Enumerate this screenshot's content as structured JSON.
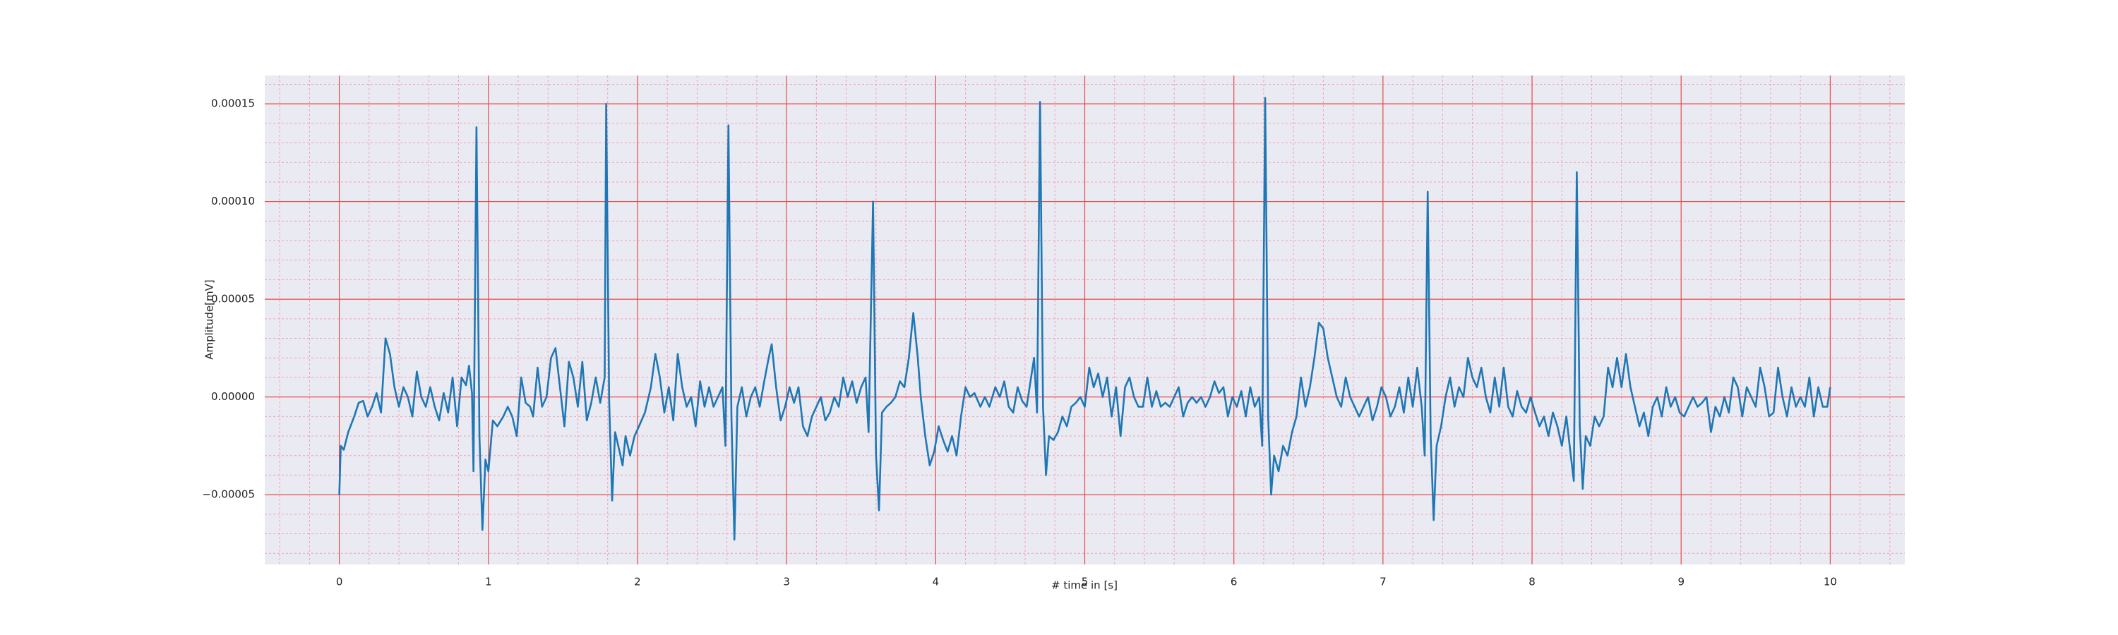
{
  "chart_data": {
    "type": "line",
    "xlabel": "# time in [s]",
    "ylabel": "Amplitude[mV]",
    "color": "#1f77b4",
    "grid": true,
    "grid_color": "#e84a4a",
    "minor_grid": true,
    "minor_grid_color": "#f3a0b4",
    "background": "#eaeaf2",
    "xlim": [
      -0.5,
      10.5
    ],
    "ylim": [
      -8.57e-05,
      0.0001645
    ],
    "xticks": [
      0,
      1,
      2,
      3,
      4,
      5,
      6,
      7,
      8,
      9,
      10
    ],
    "yticks": [
      {
        "value": -5e-05,
        "label": "−0.00005"
      },
      {
        "value": 0,
        "label": "0.00000"
      },
      {
        "value": 5e-05,
        "label": "0.00005"
      },
      {
        "value": 0.0001,
        "label": "0.00010"
      },
      {
        "value": 0.00015,
        "label": "0.00015"
      }
    ],
    "x": [
      0,
      0.01,
      0.03,
      0.06,
      0.1,
      0.13,
      0.16,
      0.19,
      0.22,
      0.25,
      0.28,
      0.31,
      0.34,
      0.37,
      0.4,
      0.43,
      0.46,
      0.49,
      0.52,
      0.55,
      0.58,
      0.61,
      0.64,
      0.67,
      0.7,
      0.73,
      0.76,
      0.79,
      0.82,
      0.85,
      0.87,
      0.89,
      0.9,
      0.92,
      0.94,
      0.96,
      0.98,
      1.0,
      1.03,
      1.06,
      1.1,
      1.13,
      1.16,
      1.19,
      1.22,
      1.25,
      1.28,
      1.3,
      1.33,
      1.36,
      1.39,
      1.42,
      1.45,
      1.48,
      1.51,
      1.54,
      1.57,
      1.6,
      1.63,
      1.66,
      1.69,
      1.72,
      1.75,
      1.78,
      1.79,
      1.81,
      1.83,
      1.85,
      1.88,
      1.9,
      1.92,
      1.95,
      1.98,
      2.01,
      2.05,
      2.09,
      2.12,
      2.15,
      2.18,
      2.21,
      2.24,
      2.27,
      2.3,
      2.33,
      2.36,
      2.39,
      2.42,
      2.45,
      2.48,
      2.51,
      2.54,
      2.57,
      2.59,
      2.61,
      2.63,
      2.65,
      2.67,
      2.7,
      2.73,
      2.76,
      2.79,
      2.82,
      2.85,
      2.88,
      2.9,
      2.93,
      2.96,
      2.99,
      3.02,
      3.05,
      3.08,
      3.11,
      3.14,
      3.17,
      3.2,
      3.23,
      3.26,
      3.29,
      3.32,
      3.35,
      3.38,
      3.41,
      3.44,
      3.47,
      3.5,
      3.53,
      3.55,
      3.58,
      3.6,
      3.62,
      3.64,
      3.67,
      3.7,
      3.73,
      3.76,
      3.79,
      3.82,
      3.85,
      3.88,
      3.9,
      3.93,
      3.96,
      3.99,
      4.02,
      4.05,
      4.08,
      4.11,
      4.14,
      4.17,
      4.2,
      4.23,
      4.26,
      4.3,
      4.33,
      4.36,
      4.4,
      4.43,
      4.46,
      4.49,
      4.52,
      4.55,
      4.58,
      4.61,
      4.64,
      4.66,
      4.68,
      4.7,
      4.72,
      4.74,
      4.76,
      4.79,
      4.82,
      4.85,
      4.88,
      4.91,
      4.94,
      4.97,
      5.0,
      5.03,
      5.06,
      5.09,
      5.12,
      5.15,
      5.18,
      5.21,
      5.24,
      5.27,
      5.3,
      5.33,
      5.36,
      5.39,
      5.42,
      5.45,
      5.48,
      5.51,
      5.54,
      5.57,
      5.6,
      5.63,
      5.66,
      5.69,
      5.72,
      5.75,
      5.78,
      5.81,
      5.84,
      5.87,
      5.9,
      5.93,
      5.96,
      5.99,
      6.02,
      6.05,
      6.08,
      6.11,
      6.14,
      6.17,
      6.19,
      6.21,
      6.23,
      6.25,
      6.27,
      6.3,
      6.33,
      6.36,
      6.39,
      6.42,
      6.45,
      6.48,
      6.51,
      6.54,
      6.57,
      6.6,
      6.63,
      6.66,
      6.69,
      6.72,
      6.75,
      6.78,
      6.81,
      6.84,
      6.87,
      6.9,
      6.93,
      6.96,
      6.99,
      7.02,
      7.05,
      7.08,
      7.11,
      7.14,
      7.17,
      7.2,
      7.23,
      7.26,
      7.28,
      7.3,
      7.32,
      7.34,
      7.36,
      7.39,
      7.42,
      7.45,
      7.48,
      7.51,
      7.54,
      7.57,
      7.6,
      7.63,
      7.66,
      7.69,
      7.72,
      7.75,
      7.78,
      7.81,
      7.84,
      7.87,
      7.9,
      7.93,
      7.96,
      7.99,
      8.02,
      8.05,
      8.08,
      8.11,
      8.14,
      8.17,
      8.2,
      8.23,
      8.26,
      8.28,
      8.3,
      8.32,
      8.34,
      8.36,
      8.39,
      8.42,
      8.45,
      8.48,
      8.51,
      8.54,
      8.57,
      8.6,
      8.63,
      8.66,
      8.69,
      8.72,
      8.75,
      8.78,
      8.81,
      8.84,
      8.87,
      8.9,
      8.93,
      8.96,
      8.99,
      9.02,
      9.05,
      9.08,
      9.11,
      9.14,
      9.17,
      9.2,
      9.23,
      9.26,
      9.29,
      9.32,
      9.35,
      9.38,
      9.41,
      9.44,
      9.47,
      9.5,
      9.53,
      9.56,
      9.59,
      9.62,
      9.65,
      9.68,
      9.71,
      9.74,
      9.77,
      9.8,
      9.83,
      9.86,
      9.89,
      9.92,
      9.95,
      9.98,
      10
    ],
    "values": [
      -5e-05,
      -2.5e-05,
      -2.7e-05,
      -1.8e-05,
      -1e-05,
      -3e-06,
      -2e-06,
      -1e-05,
      -5e-06,
      2e-06,
      -8e-06,
      3e-05,
      2.2e-05,
      5e-06,
      -5e-06,
      5e-06,
      0,
      -1e-05,
      1.3e-05,
      0,
      -5e-06,
      5e-06,
      -5e-06,
      -1.2e-05,
      2e-06,
      -8e-06,
      1e-05,
      -1.5e-05,
      1e-05,
      6e-06,
      1.6e-05,
      2e-06,
      -3.8e-05,
      0.000138,
      -2e-05,
      -6.8e-05,
      -3.2e-05,
      -3.8e-05,
      -1.2e-05,
      -1.5e-05,
      -1e-05,
      -5e-06,
      -1e-05,
      -2e-05,
      1e-05,
      -3e-06,
      -5e-06,
      -1e-05,
      1.5e-05,
      -5e-06,
      0,
      2e-05,
      2.5e-05,
      5e-06,
      -1.5e-05,
      1.8e-05,
      1e-05,
      -5e-06,
      1.8e-05,
      -1.2e-05,
      -3e-06,
      1e-05,
      -3e-06,
      1e-05,
      0.00015,
      -2e-06,
      -5.3e-05,
      -1.8e-05,
      -2.8e-05,
      -3.5e-05,
      -2e-05,
      -3e-05,
      -2e-05,
      -1.5e-05,
      -8e-06,
      5e-06,
      2.2e-05,
      1e-05,
      -8e-06,
      5e-06,
      -1.2e-05,
      2.2e-05,
      5e-06,
      -5e-06,
      0,
      -1.5e-05,
      8e-06,
      -5e-06,
      5e-06,
      -5e-06,
      0,
      5e-06,
      -2.5e-05,
      0.000139,
      -1e-05,
      -7.3e-05,
      -5e-06,
      5e-06,
      -1e-05,
      0,
      5e-06,
      -5e-06,
      8e-06,
      2e-05,
      2.7e-05,
      5e-06,
      -1.2e-05,
      -5e-06,
      5e-06,
      -3e-06,
      5e-06,
      -1.5e-05,
      -2e-05,
      -1e-05,
      -5e-06,
      0,
      -1.2e-05,
      -8e-06,
      0,
      -5e-06,
      1e-05,
      0,
      8e-06,
      -3e-06,
      5e-06,
      1e-05,
      -1.8e-05,
      0.0001,
      -3e-05,
      -5.8e-05,
      -8e-06,
      -5e-06,
      -3e-06,
      0,
      8e-06,
      5e-06,
      2e-05,
      4.3e-05,
      2e-05,
      0,
      -2e-05,
      -3.5e-05,
      -2.8e-05,
      -1.5e-05,
      -2.2e-05,
      -2.8e-05,
      -2e-05,
      -3e-05,
      -1e-05,
      5e-06,
      0,
      2e-06,
      -5e-06,
      0,
      -5e-06,
      5e-06,
      0,
      8e-06,
      -5e-06,
      -8e-06,
      5e-06,
      -2e-06,
      -5e-06,
      1e-05,
      2e-05,
      -8e-06,
      0.000151,
      -5e-06,
      -4e-05,
      -2e-05,
      -2.2e-05,
      -1.8e-05,
      -1e-05,
      -1.5e-05,
      -5e-06,
      -3e-06,
      0,
      -5e-06,
      1.5e-05,
      5e-06,
      1.2e-05,
      0,
      1e-05,
      -1e-05,
      5e-06,
      -2e-05,
      5e-06,
      1e-05,
      0,
      -5e-06,
      -5e-06,
      1e-05,
      -5e-06,
      3e-06,
      -5e-06,
      -3e-06,
      -5e-06,
      0,
      5e-06,
      -1e-05,
      -3e-06,
      0,
      -3e-06,
      0,
      -5e-06,
      0,
      8e-06,
      2e-06,
      5e-06,
      -1e-05,
      0,
      -5e-06,
      3e-06,
      -1e-05,
      5e-06,
      -5e-06,
      0,
      -2.5e-05,
      0.000153,
      -1e-05,
      -5e-05,
      -3e-05,
      -3.8e-05,
      -2.5e-05,
      -3e-05,
      -1.8e-05,
      -1e-05,
      1e-05,
      -5e-06,
      5e-06,
      2e-05,
      3.8e-05,
      3.5e-05,
      2e-05,
      1e-05,
      0,
      -5e-06,
      1e-05,
      0,
      -5e-06,
      -1e-05,
      -5e-06,
      0,
      -1.2e-05,
      -5e-06,
      5e-06,
      0,
      -1e-05,
      -5e-06,
      5e-06,
      -8e-06,
      1e-05,
      -5e-06,
      1.5e-05,
      -5e-06,
      -3e-05,
      0.000105,
      -2e-05,
      -6.3e-05,
      -2.5e-05,
      -1.5e-05,
      0,
      1e-05,
      -5e-06,
      5e-06,
      0,
      2e-05,
      1e-05,
      5e-06,
      1.5e-05,
      0,
      -8e-06,
      1e-05,
      -5e-06,
      1.5e-05,
      -5e-06,
      -1e-05,
      3e-06,
      -5e-06,
      -8e-06,
      0,
      -8e-06,
      -1.5e-05,
      -1e-05,
      -2e-05,
      -8e-06,
      -1.5e-05,
      -2.5e-05,
      -1e-05,
      -3e-05,
      -4.3e-05,
      0.000115,
      -1.5e-05,
      -4.7e-05,
      -2e-05,
      -2.5e-05,
      -1e-05,
      -1.5e-05,
      -1e-05,
      1.5e-05,
      5e-06,
      2e-05,
      5e-06,
      2.2e-05,
      5e-06,
      -5e-06,
      -1.5e-05,
      -8e-06,
      -2e-05,
      -5e-06,
      0,
      -1e-05,
      5e-06,
      -5e-06,
      0,
      -8e-06,
      -1e-05,
      -5e-06,
      0,
      -5e-06,
      -3e-06,
      0,
      -1.8e-05,
      -5e-06,
      -1e-05,
      0,
      -8e-06,
      1e-05,
      5e-06,
      -1e-05,
      5e-06,
      0,
      -5e-06,
      1.5e-05,
      5e-06,
      -1e-05,
      -8e-06,
      1.5e-05,
      0,
      -1e-05,
      5e-06,
      -5e-06,
      0,
      -5e-06,
      1e-05,
      -1e-05,
      5e-06,
      -5e-06,
      -5e-06,
      5e-06
    ]
  }
}
